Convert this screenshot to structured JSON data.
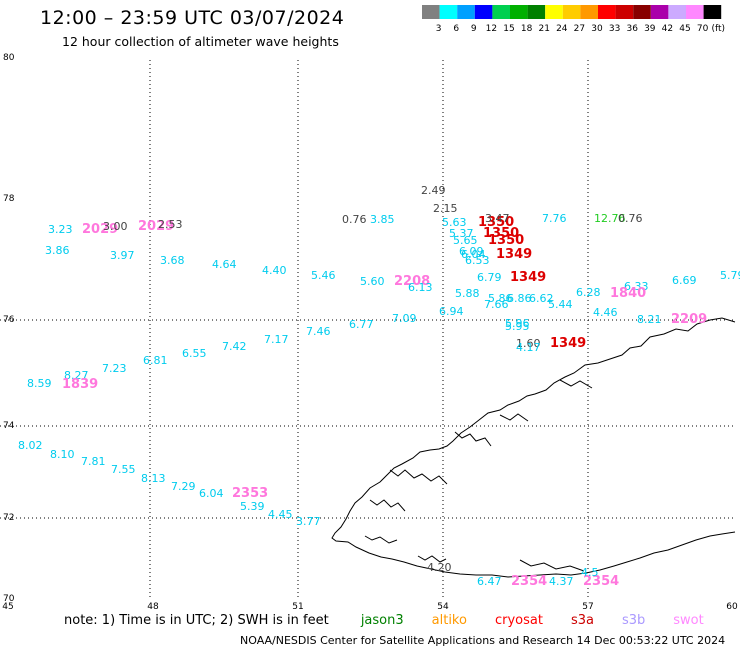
{
  "header": {
    "title": "12:00 – 23:59 UTC 03/07/2024",
    "subtitle": "12 hour collection of altimeter wave heights"
  },
  "legend": {
    "unit": "(ft)",
    "bins": [
      {
        "label": "3",
        "color": "#808080"
      },
      {
        "label": "6",
        "color": "#00ffff"
      },
      {
        "label": "9",
        "color": "#00a0ff"
      },
      {
        "label": "12",
        "color": "#0000ff"
      },
      {
        "label": "15",
        "color": "#00d050"
      },
      {
        "label": "18",
        "color": "#00b000"
      },
      {
        "label": "21",
        "color": "#008000"
      },
      {
        "label": "24",
        "color": "#ffff00"
      },
      {
        "label": "27",
        "color": "#ffcc00"
      },
      {
        "label": "30",
        "color": "#ff9900"
      },
      {
        "label": "33",
        "color": "#ff0000"
      },
      {
        "label": "36",
        "color": "#cc0000"
      },
      {
        "label": "39",
        "color": "#880000"
      },
      {
        "label": "42",
        "color": "#aa00aa"
      },
      {
        "label": "45",
        "color": "#ccaaff"
      },
      {
        "label": "70",
        "color": "#ff88ff"
      },
      {
        "label": "",
        "color": "#000000"
      }
    ]
  },
  "axes": {
    "lon_labels": [
      "45",
      "48",
      "51",
      "54",
      "57",
      "60"
    ],
    "lat_labels": [
      "80",
      "78",
      "76",
      "74",
      "72",
      "70"
    ]
  },
  "observations": [
    {
      "text": "2.49",
      "sat": "gray"
    },
    {
      "text": "2.15",
      "sat": "gray"
    },
    {
      "text": "3.23",
      "sat": "cyan"
    },
    {
      "text": "2029",
      "sat": "pink"
    },
    {
      "text": "3.00",
      "sat": "gray"
    },
    {
      "text": "2029",
      "sat": "pink"
    },
    {
      "text": "2.53",
      "sat": "gray"
    },
    {
      "text": "0.76",
      "sat": "gray"
    },
    {
      "text": "3.85",
      "sat": "cyan"
    },
    {
      "text": "5.63",
      "sat": "cyan"
    },
    {
      "text": "1350",
      "sat": "red"
    },
    {
      "text": "3.47",
      "sat": "gray"
    },
    {
      "text": "7.76",
      "sat": "cyan"
    },
    {
      "text": "12.76",
      "sat": "green"
    },
    {
      "text": "0.76",
      "sat": "gray"
    },
    {
      "text": "5.37",
      "sat": "cyan"
    },
    {
      "text": "1350",
      "sat": "red"
    },
    {
      "text": "5.65",
      "sat": "cyan"
    },
    {
      "text": "1350",
      "sat": "red"
    },
    {
      "text": "3.86",
      "sat": "cyan"
    },
    {
      "text": "3.97",
      "sat": "cyan"
    },
    {
      "text": "6.09",
      "sat": "cyan"
    },
    {
      "text": "6.04",
      "sat": "cyan"
    },
    {
      "text": "1349",
      "sat": "red"
    },
    {
      "text": "3.68",
      "sat": "cyan"
    },
    {
      "text": "6.53",
      "sat": "cyan"
    },
    {
      "text": "4.64",
      "sat": "cyan"
    },
    {
      "text": "4.40",
      "sat": "cyan"
    },
    {
      "text": "5.46",
      "sat": "cyan"
    },
    {
      "text": "6.79",
      "sat": "cyan"
    },
    {
      "text": "1349",
      "sat": "red"
    },
    {
      "text": "5.60",
      "sat": "cyan"
    },
    {
      "text": "2208",
      "sat": "pink"
    },
    {
      "text": "6.13",
      "sat": "cyan"
    },
    {
      "text": "6.33",
      "sat": "cyan"
    },
    {
      "text": "6.69",
      "sat": "cyan"
    },
    {
      "text": "5.79",
      "sat": "cyan"
    },
    {
      "text": "1840",
      "sat": "pink"
    },
    {
      "text": "6.28",
      "sat": "cyan"
    },
    {
      "text": "5.88",
      "sat": "cyan"
    },
    {
      "text": "5.86",
      "sat": "cyan"
    },
    {
      "text": "6.86",
      "sat": "cyan"
    },
    {
      "text": "6.62",
      "sat": "cyan"
    },
    {
      "text": "7.66",
      "sat": "cyan"
    },
    {
      "text": "5.44",
      "sat": "cyan"
    },
    {
      "text": "6.94",
      "sat": "cyan"
    },
    {
      "text": "4.46",
      "sat": "cyan"
    },
    {
      "text": "7.09",
      "sat": "cyan"
    },
    {
      "text": "8.21",
      "sat": "cyan"
    },
    {
      "text": "2209",
      "sat": "pink"
    },
    {
      "text": "6.77",
      "sat": "cyan"
    },
    {
      "text": "5.96",
      "sat": "cyan"
    },
    {
      "text": "5.95",
      "sat": "cyan"
    },
    {
      "text": "7.46",
      "sat": "cyan"
    },
    {
      "text": "7.17",
      "sat": "cyan"
    },
    {
      "text": "1.60",
      "sat": "gray"
    },
    {
      "text": "4.17",
      "sat": "cyan"
    },
    {
      "text": "1349",
      "sat": "red"
    },
    {
      "text": "7.42",
      "sat": "cyan"
    },
    {
      "text": "6.55",
      "sat": "cyan"
    },
    {
      "text": "6.81",
      "sat": "cyan"
    },
    {
      "text": "7.23",
      "sat": "cyan"
    },
    {
      "text": "8.27",
      "sat": "cyan"
    },
    {
      "text": "8.59",
      "sat": "cyan"
    },
    {
      "text": "1839",
      "sat": "pink"
    },
    {
      "text": "8.02",
      "sat": "cyan"
    },
    {
      "text": "8.10",
      "sat": "cyan"
    },
    {
      "text": "7.81",
      "sat": "cyan"
    },
    {
      "text": "7.55",
      "sat": "cyan"
    },
    {
      "text": "8.13",
      "sat": "cyan"
    },
    {
      "text": "7.29",
      "sat": "cyan"
    },
    {
      "text": "6.04",
      "sat": "cyan"
    },
    {
      "text": "2353",
      "sat": "pink"
    },
    {
      "text": "5.39",
      "sat": "cyan"
    },
    {
      "text": "4.45",
      "sat": "cyan"
    },
    {
      "text": "3.77",
      "sat": "cyan"
    },
    {
      "text": "4.20",
      "sat": "gray"
    },
    {
      "text": "6.47",
      "sat": "cyan"
    },
    {
      "text": "2354",
      "sat": "pink"
    },
    {
      "text": "4.37",
      "sat": "cyan"
    },
    {
      "text": "2354",
      "sat": "pink"
    },
    {
      "text": "4.5",
      "sat": "cyan"
    }
  ],
  "footer": {
    "note_prefix": "note:  1) Time is in UTC; 2) SWH is in feet",
    "satellites": [
      {
        "name": "jason3",
        "color": "#008000"
      },
      {
        "name": "altiko",
        "color": "#ff9900"
      },
      {
        "name": "cryosat",
        "color": "#ff0000"
      },
      {
        "name": "s3a",
        "color": "#cc0000"
      },
      {
        "name": "s3b",
        "color": "#aa99ff"
      },
      {
        "name": "swot",
        "color": "#ff88ff"
      }
    ],
    "credit": "NOAA/NESDIS Center for Satellite Applications and Research    14 Dec 00:53:22 UTC 2024"
  },
  "colors": {
    "gray": "#444444",
    "cyan": "#00ccee",
    "red": "#dd0000",
    "pink": "#ff77dd",
    "green": "#22cc22"
  }
}
